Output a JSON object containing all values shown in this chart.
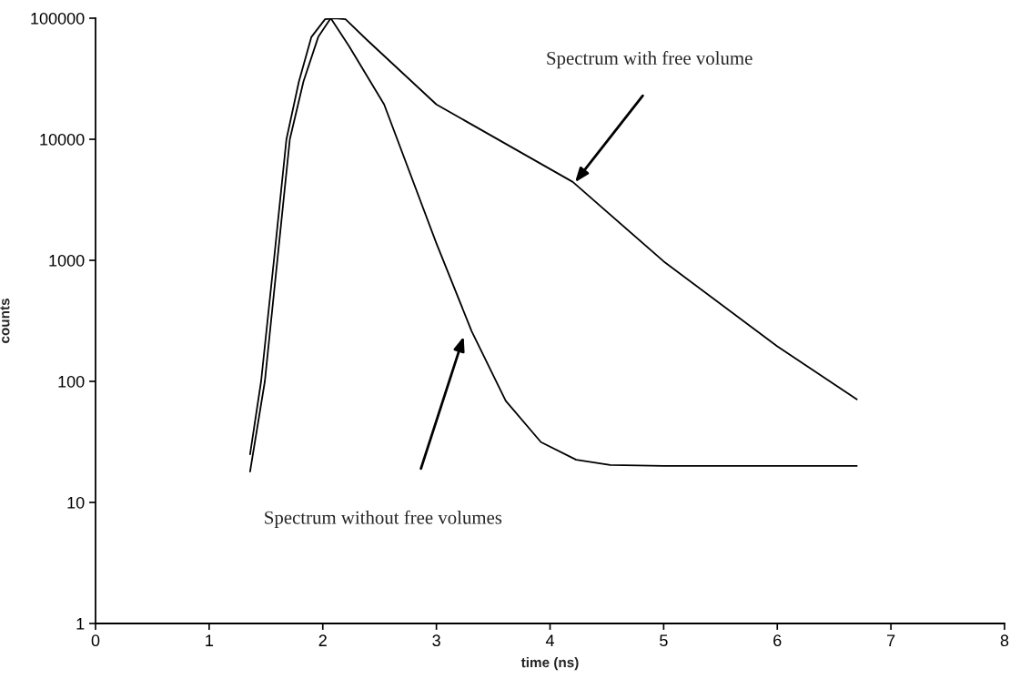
{
  "chart_data": {
    "type": "line",
    "xlabel": "time (ns)",
    "ylabel": "counts",
    "log": "y",
    "xlim": [
      0,
      8
    ],
    "xticks": [
      0,
      1,
      2,
      3,
      4,
      5,
      6,
      7,
      8
    ],
    "ylim": [
      1,
      100000
    ],
    "yticks": [
      1,
      10,
      100,
      1000,
      10000,
      100000
    ],
    "series": [
      {
        "color": "#000000",
        "x": [
          1.36,
          1.457,
          1.57,
          1.68,
          1.79,
          1.9,
          2.02,
          2.1,
          2.2,
          2.39,
          3.0,
          4.2,
          5.0,
          6.0,
          6.7
        ],
        "values": [
          25,
          100,
          1000,
          10000,
          30000,
          70000,
          98000,
          100000,
          98000,
          66000,
          19400,
          4440,
          980,
          195,
          71
        ]
      },
      {
        "color": "#000000",
        "x": [
          1.36,
          1.49,
          1.6,
          1.71,
          1.83,
          1.96,
          2.07,
          2.23,
          2.54,
          3.0,
          3.31,
          3.61,
          3.92,
          4.23,
          4.53,
          5.0,
          6.7
        ],
        "values": [
          18,
          100,
          1000,
          10000,
          30000,
          70000,
          100000,
          59000,
          19400,
          1380,
          260,
          69,
          31.5,
          22.5,
          20.4,
          20,
          20
        ]
      }
    ],
    "annotations": [
      "Spectrum with free volume",
      "Spectrum without free volumes"
    ]
  }
}
